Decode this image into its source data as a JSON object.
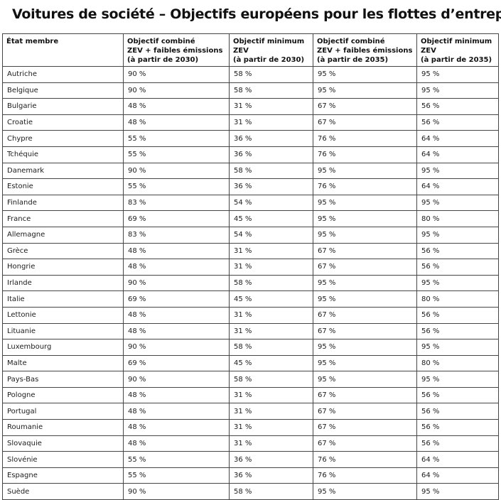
{
  "page": {
    "title": "Voitures de société – Objectifs européens pour les flottes d’entreprise"
  },
  "colors": {
    "border": "#454545",
    "text": "#1c1c1c",
    "background": "#ffffff"
  },
  "chart_data": {
    "type": "table",
    "title": "Voitures de société – Objectifs européens pour les flottes d’entreprise",
    "columns": [
      "État membre",
      "Objectif combiné\nZEV + faibles émissions\n(à partir de 2030)",
      "Objectif minimum\nZEV\n(à partir de 2030)",
      "Objectif combiné\nZEV + faibles émissions\n(à partir de 2035)",
      "Objectif minimum\nZEV\n(à partir de 2035)"
    ],
    "rows": [
      [
        "Autriche",
        "90 %",
        "58 %",
        "95 %",
        "95 %"
      ],
      [
        "Belgique",
        "90 %",
        "58 %",
        "95 %",
        "95 %"
      ],
      [
        "Bulgarie",
        "48 %",
        "31 %",
        "67 %",
        "56 %"
      ],
      [
        "Croatie",
        "48 %",
        "31 %",
        "67 %",
        "56 %"
      ],
      [
        "Chypre",
        "55 %",
        "36 %",
        "76 %",
        "64 %"
      ],
      [
        "Tchéquie",
        "55 %",
        "36 %",
        "76 %",
        "64 %"
      ],
      [
        "Danemark",
        "90 %",
        "58 %",
        "95 %",
        "95 %"
      ],
      [
        "Estonie",
        "55 %",
        "36 %",
        "76 %",
        "64 %"
      ],
      [
        "Finlande",
        "83 %",
        "54 %",
        "95 %",
        "95 %"
      ],
      [
        "France",
        "69 %",
        "45 %",
        "95 %",
        "80 %"
      ],
      [
        "Allemagne",
        "83 %",
        "54 %",
        "95 %",
        "95 %"
      ],
      [
        "Grèce",
        "48 %",
        "31 %",
        "67 %",
        "56 %"
      ],
      [
        "Hongrie",
        "48 %",
        "31 %",
        "67 %",
        "56 %"
      ],
      [
        "Irlande",
        "90 %",
        "58 %",
        "95 %",
        "95 %"
      ],
      [
        "Italie",
        "69 %",
        "45 %",
        "95 %",
        "80 %"
      ],
      [
        "Lettonie",
        "48 %",
        "31 %",
        "67 %",
        "56 %"
      ],
      [
        "Lituanie",
        "48 %",
        "31 %",
        "67 %",
        "56 %"
      ],
      [
        "Luxembourg",
        "90 %",
        "58 %",
        "95 %",
        "95 %"
      ],
      [
        "Malte",
        "69 %",
        "45 %",
        "95 %",
        "80 %"
      ],
      [
        "Pays-Bas",
        "90 %",
        "58 %",
        "95 %",
        "95 %"
      ],
      [
        "Pologne",
        "48 %",
        "31 %",
        "67 %",
        "56 %"
      ],
      [
        "Portugal",
        "48 %",
        "31 %",
        "67 %",
        "56 %"
      ],
      [
        "Roumanie",
        "48 %",
        "31 %",
        "67 %",
        "56 %"
      ],
      [
        "Slovaquie",
        "48 %",
        "31 %",
        "67 %",
        "56 %"
      ],
      [
        "Slovénie",
        "55 %",
        "36 %",
        "76 %",
        "64 %"
      ],
      [
        "Espagne",
        "55 %",
        "36 %",
        "76 %",
        "64 %"
      ],
      [
        "Suède",
        "90 %",
        "58 %",
        "95 %",
        "95 %"
      ]
    ]
  }
}
